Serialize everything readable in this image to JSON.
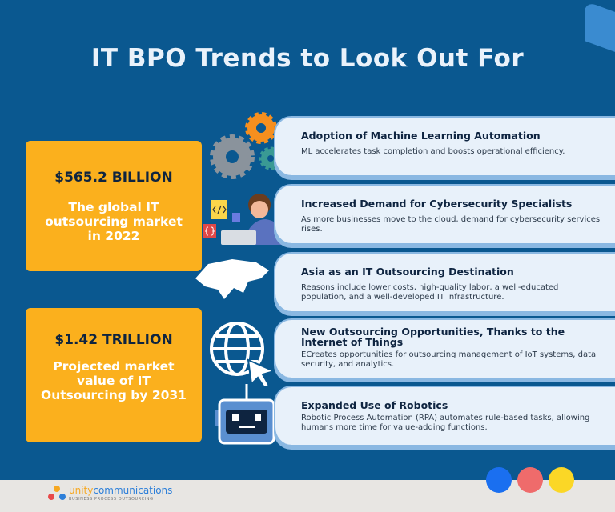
{
  "title": "IT BPO Trends to Look Out For",
  "stats": [
    {
      "value": "$565.2 BILLION",
      "label": "The global IT outsourcing market in 2022"
    },
    {
      "value": "$1.42 TRILLION",
      "label": "Projected market value of IT Outsourcing by 2031"
    }
  ],
  "trends": [
    {
      "heading": "Adoption of Machine Learning Automation",
      "text": "ML accelerates task completion and boosts operational efficiency.",
      "icon": "gears-icon"
    },
    {
      "heading": "Increased Demand for Cybersecurity Specialists",
      "text": "As more businesses move to the cloud, demand for cybersecurity services rises.",
      "icon": "developer-icon"
    },
    {
      "heading": "Asia as an IT Outsourcing Destination",
      "text": "Reasons include lower costs, high-quality labor, a well-educated population, and a well-developed IT infrastructure.",
      "icon": "asia-map-icon"
    },
    {
      "heading": "New Outsourcing Opportunities, Thanks to the Internet of Things",
      "text": "ECreates opportunities for outsourcing management of IoT systems, data security, and analytics.",
      "icon": "globe-cursor-icon"
    },
    {
      "heading": "Expanded Use of Robotics",
      "text": "Robotic Process Automation (RPA) automates rule-based tasks, allowing humans more time for value-adding functions.",
      "icon": "robot-icon"
    }
  ],
  "footer": {
    "brand_unity": "unity",
    "brand_comm": "communications",
    "tagline": "BUSINESS PROCESS OUTSOURCING"
  },
  "colors": {
    "background": "#0a5890",
    "accent": "#fbb01d",
    "dots": [
      "#1a6ff0",
      "#ef6b6b",
      "#fbd726"
    ]
  }
}
